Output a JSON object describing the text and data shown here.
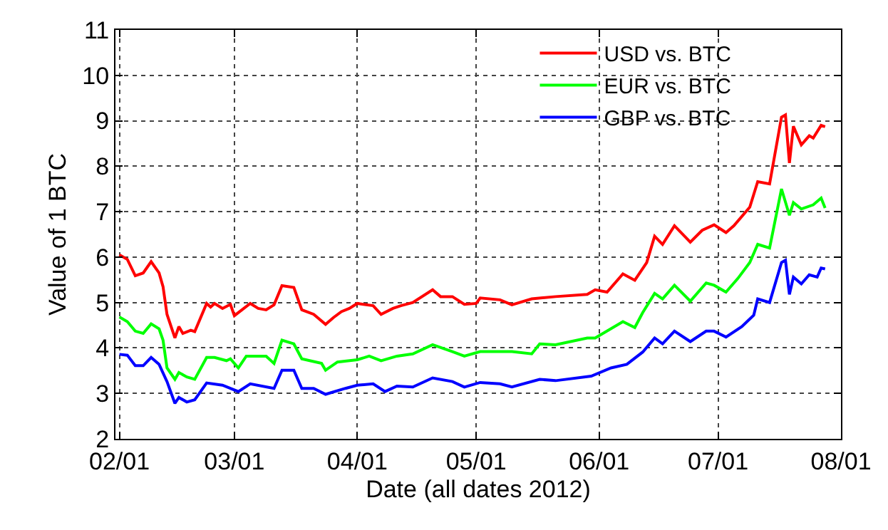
{
  "chart_data": {
    "type": "line",
    "xlabel": "Date (all dates 2012)",
    "ylabel": "Value of 1 BTC",
    "xlim": [
      "2012-01-31",
      "2012-08-01"
    ],
    "xticks": [
      {
        "value": "2012-02-01",
        "label": "02/01"
      },
      {
        "value": "2012-03-01",
        "label": "03/01"
      },
      {
        "value": "2012-04-01",
        "label": "04/01"
      },
      {
        "value": "2012-05-01",
        "label": "05/01"
      },
      {
        "value": "2012-06-01",
        "label": "06/01"
      },
      {
        "value": "2012-07-01",
        "label": "07/01"
      },
      {
        "value": "2012-08-01",
        "label": "08/01"
      }
    ],
    "ylim": [
      2,
      11
    ],
    "yticks": [
      2,
      3,
      4,
      5,
      6,
      7,
      8,
      9,
      10,
      11
    ],
    "grid": true,
    "legend": "top right",
    "marker": "none",
    "line_style": "solid",
    "series": [
      {
        "name": "USD vs. BTC",
        "color": "#ff0000",
        "x": [
          "2012-02-01",
          "2012-02-03",
          "2012-02-05",
          "2012-02-07",
          "2012-02-09",
          "2012-02-11",
          "2012-02-12",
          "2012-02-13",
          "2012-02-15",
          "2012-02-16",
          "2012-02-17",
          "2012-02-19",
          "2012-02-20",
          "2012-02-23",
          "2012-02-24",
          "2012-02-25",
          "2012-02-27",
          "2012-02-29",
          "2012-03-01",
          "2012-03-05",
          "2012-03-07",
          "2012-03-09",
          "2012-03-11",
          "2012-03-13",
          "2012-03-16",
          "2012-03-18",
          "2012-03-21",
          "2012-03-24",
          "2012-03-26",
          "2012-03-28",
          "2012-03-30",
          "2012-04-01",
          "2012-04-05",
          "2012-04-07",
          "2012-04-10",
          "2012-04-12",
          "2012-04-15",
          "2012-04-20",
          "2012-04-22",
          "2012-04-25",
          "2012-04-28",
          "2012-05-01",
          "2012-05-02",
          "2012-05-07",
          "2012-05-10",
          "2012-05-15",
          "2012-05-21",
          "2012-05-29",
          "2012-05-31",
          "2012-06-03",
          "2012-06-07",
          "2012-06-10",
          "2012-06-13",
          "2012-06-15",
          "2012-06-17",
          "2012-06-20",
          "2012-06-24",
          "2012-06-27",
          "2012-06-30",
          "2012-07-03",
          "2012-07-05",
          "2012-07-09",
          "2012-07-11",
          "2012-07-14",
          "2012-07-17",
          "2012-07-18",
          "2012-07-19",
          "2012-07-20",
          "2012-07-22",
          "2012-07-24",
          "2012-07-25",
          "2012-07-27",
          "2012-07-28"
        ],
        "values": [
          6.05,
          5.95,
          5.59,
          5.65,
          5.9,
          5.65,
          5.35,
          4.74,
          4.22,
          4.47,
          4.32,
          4.39,
          4.36,
          4.98,
          4.9,
          4.98,
          4.87,
          4.96,
          4.71,
          4.98,
          4.87,
          4.84,
          4.95,
          5.37,
          5.33,
          4.84,
          4.74,
          4.52,
          4.67,
          4.8,
          4.87,
          4.98,
          4.93,
          4.74,
          4.87,
          4.93,
          5.0,
          5.28,
          5.13,
          5.13,
          4.96,
          4.98,
          5.1,
          5.06,
          4.95,
          5.08,
          5.13,
          5.18,
          5.28,
          5.23,
          5.63,
          5.49,
          5.88,
          6.46,
          6.28,
          6.69,
          6.33,
          6.59,
          6.71,
          6.54,
          6.69,
          7.1,
          7.66,
          7.61,
          9.08,
          9.13,
          8.07,
          8.88,
          8.47,
          8.67,
          8.62,
          8.9,
          8.87
        ]
      },
      {
        "name": "EUR vs. BTC",
        "color": "#00ff00",
        "x": [
          "2012-02-01",
          "2012-02-03",
          "2012-02-05",
          "2012-02-07",
          "2012-02-09",
          "2012-02-11",
          "2012-02-12",
          "2012-02-13",
          "2012-02-15",
          "2012-02-16",
          "2012-02-18",
          "2012-02-20",
          "2012-02-23",
          "2012-02-25",
          "2012-02-28",
          "2012-02-29",
          "2012-03-02",
          "2012-03-04",
          "2012-03-09",
          "2012-03-11",
          "2012-03-13",
          "2012-03-16",
          "2012-03-18",
          "2012-03-23",
          "2012-03-24",
          "2012-03-27",
          "2012-04-01",
          "2012-04-04",
          "2012-04-07",
          "2012-04-11",
          "2012-04-15",
          "2012-04-20",
          "2012-04-25",
          "2012-04-28",
          "2012-05-02",
          "2012-05-07",
          "2012-05-10",
          "2012-05-15",
          "2012-05-17",
          "2012-05-21",
          "2012-05-29",
          "2012-05-31",
          "2012-06-07",
          "2012-06-10",
          "2012-06-12",
          "2012-06-15",
          "2012-06-17",
          "2012-06-20",
          "2012-06-24",
          "2012-06-28",
          "2012-06-30",
          "2012-07-03",
          "2012-07-06",
          "2012-07-09",
          "2012-07-11",
          "2012-07-14",
          "2012-07-17",
          "2012-07-19",
          "2012-07-20",
          "2012-07-22",
          "2012-07-25",
          "2012-07-27",
          "2012-07-28"
        ],
        "values": [
          4.68,
          4.58,
          4.37,
          4.32,
          4.53,
          4.42,
          4.17,
          3.56,
          3.31,
          3.46,
          3.36,
          3.31,
          3.79,
          3.79,
          3.72,
          3.76,
          3.56,
          3.82,
          3.82,
          3.66,
          4.17,
          4.09,
          3.76,
          3.66,
          3.51,
          3.69,
          3.74,
          3.82,
          3.72,
          3.82,
          3.87,
          4.07,
          3.92,
          3.82,
          3.92,
          3.92,
          3.92,
          3.87,
          4.09,
          4.07,
          4.22,
          4.22,
          4.58,
          4.45,
          4.78,
          5.2,
          5.08,
          5.38,
          5.03,
          5.43,
          5.38,
          5.23,
          5.53,
          5.88,
          6.28,
          6.2,
          7.5,
          6.92,
          7.2,
          7.06,
          7.15,
          7.3,
          7.08
        ]
      },
      {
        "name": "GBP vs. BTC",
        "color": "#0000ff",
        "x": [
          "2012-02-01",
          "2012-02-03",
          "2012-02-05",
          "2012-02-07",
          "2012-02-09",
          "2012-02-11",
          "2012-02-13",
          "2012-02-15",
          "2012-02-16",
          "2012-02-18",
          "2012-02-20",
          "2012-02-23",
          "2012-02-27",
          "2012-03-02",
          "2012-03-05",
          "2012-03-11",
          "2012-03-13",
          "2012-03-16",
          "2012-03-18",
          "2012-03-21",
          "2012-03-24",
          "2012-03-29",
          "2012-04-01",
          "2012-04-05",
          "2012-04-08",
          "2012-04-11",
          "2012-04-15",
          "2012-04-20",
          "2012-04-25",
          "2012-04-28",
          "2012-05-02",
          "2012-05-07",
          "2012-05-10",
          "2012-05-17",
          "2012-05-21",
          "2012-05-30",
          "2012-06-04",
          "2012-06-08",
          "2012-06-12",
          "2012-06-15",
          "2012-06-17",
          "2012-06-20",
          "2012-06-24",
          "2012-06-28",
          "2012-06-30",
          "2012-07-03",
          "2012-07-07",
          "2012-07-10",
          "2012-07-11",
          "2012-07-14",
          "2012-07-17",
          "2012-07-18",
          "2012-07-19",
          "2012-07-20",
          "2012-07-22",
          "2012-07-24",
          "2012-07-26",
          "2012-07-27",
          "2012-07-28"
        ],
        "values": [
          3.86,
          3.84,
          3.61,
          3.61,
          3.79,
          3.64,
          3.26,
          2.78,
          2.91,
          2.81,
          2.86,
          3.23,
          3.18,
          3.04,
          3.21,
          3.11,
          3.51,
          3.51,
          3.11,
          3.11,
          2.98,
          3.11,
          3.18,
          3.21,
          3.04,
          3.16,
          3.14,
          3.34,
          3.26,
          3.14,
          3.24,
          3.21,
          3.14,
          3.31,
          3.28,
          3.38,
          3.56,
          3.64,
          3.91,
          4.22,
          4.09,
          4.37,
          4.14,
          4.37,
          4.37,
          4.24,
          4.47,
          4.72,
          5.08,
          5.0,
          5.88,
          5.93,
          5.18,
          5.56,
          5.41,
          5.61,
          5.56,
          5.76,
          5.74
        ]
      }
    ]
  }
}
